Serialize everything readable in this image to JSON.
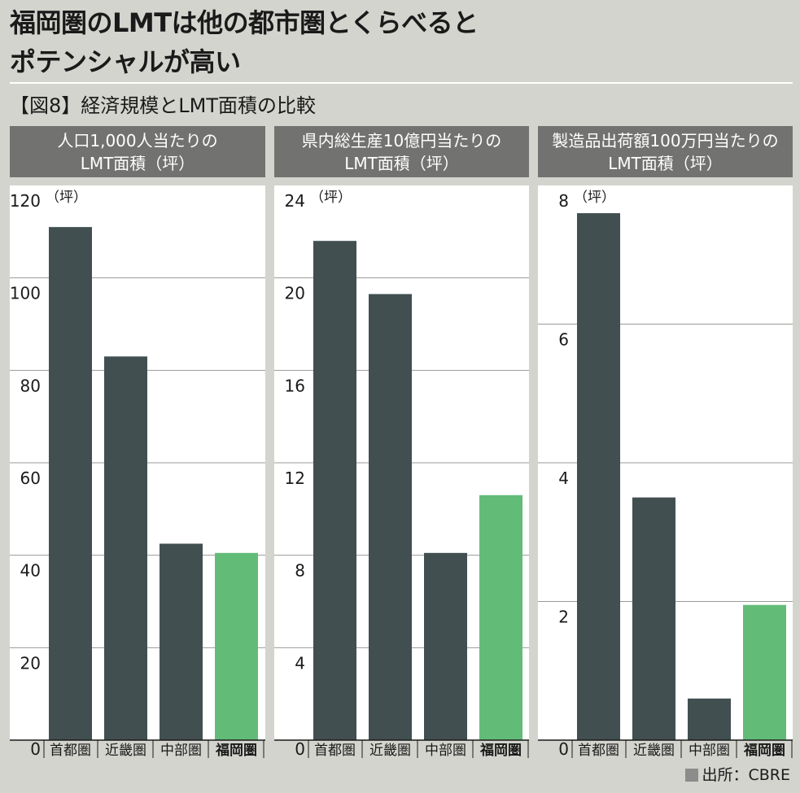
{
  "title_lines": [
    "福岡圏のLMTは他の都市圏とくらべると",
    "ポテンシャルが高い"
  ],
  "subtitle": "【図8】経済規模とLMT面積の比較",
  "source": "出所：CBRE",
  "colors": {
    "default_bar": "#414f50",
    "highlight_bar": "#62bc78"
  },
  "chart_data": [
    {
      "type": "bar",
      "title_lines": [
        "人口1,000人当たりの",
        "LMT面積（坪）"
      ],
      "unit": "（坪）",
      "categories": [
        "首都圏",
        "近畿圏",
        "中部圏",
        "福岡圏"
      ],
      "highlight": "福岡圏",
      "values": [
        111,
        83,
        42.5,
        40.5
      ],
      "ylim": [
        0,
        120
      ],
      "yticks": [
        0,
        20,
        40,
        60,
        80,
        100,
        120
      ],
      "ytick_labels": [
        "0",
        "20",
        "40",
        "60",
        "80",
        "100",
        "120"
      ]
    },
    {
      "type": "bar",
      "title_lines": [
        "県内総生産10億円当たりの",
        "LMT面積（坪）"
      ],
      "unit": "（坪）",
      "categories": [
        "首都圏",
        "近畿圏",
        "中部圏",
        "福岡圏"
      ],
      "highlight": "福岡圏",
      "values": [
        21.6,
        19.3,
        8.1,
        10.6
      ],
      "ylim": [
        0,
        24
      ],
      "yticks": [
        0,
        4,
        8,
        12,
        16,
        20,
        24
      ],
      "ytick_labels": [
        "0",
        "4",
        "8",
        "12",
        "16",
        "20",
        "24"
      ]
    },
    {
      "type": "bar",
      "title_lines": [
        "製造品出荷額100万円当たりの",
        "LMT面積（坪）"
      ],
      "unit": "（坪）",
      "categories": [
        "首都圏",
        "近畿圏",
        "中部圏",
        "福岡圏"
      ],
      "highlight": "福岡圏",
      "values": [
        7.6,
        3.5,
        0.6,
        1.95
      ],
      "ylim": [
        0,
        8
      ],
      "yticks": [
        0,
        2,
        4,
        6,
        8
      ],
      "ytick_labels": [
        "0",
        "2",
        "4",
        "6",
        "8"
      ]
    }
  ]
}
